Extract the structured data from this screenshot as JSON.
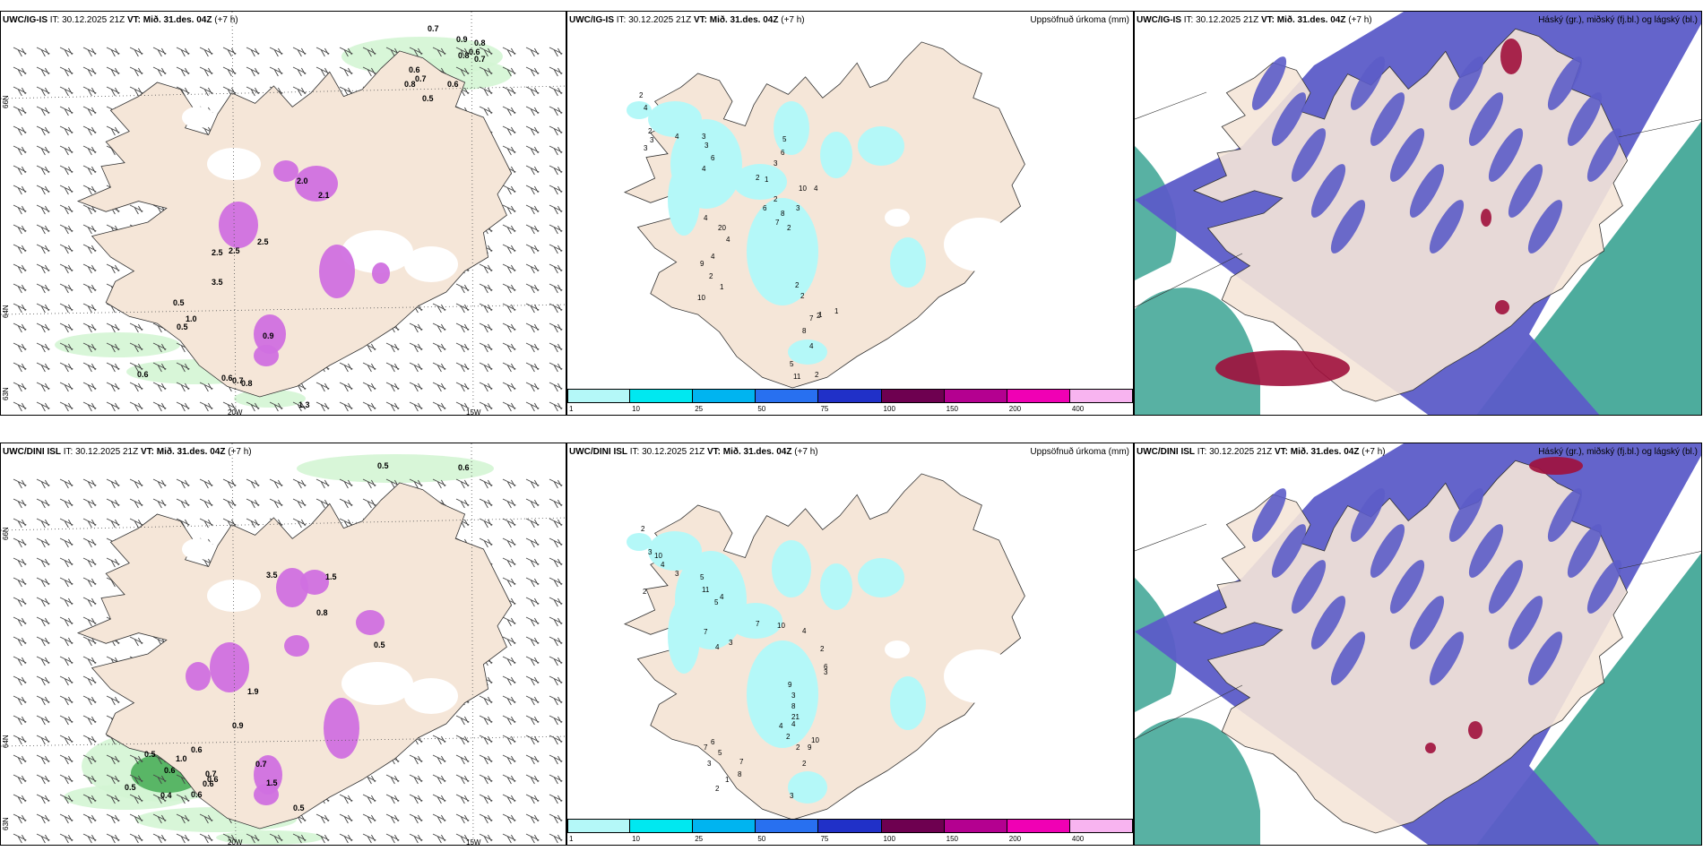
{
  "rows": [
    {
      "panels": [
        {
          "model": "UWC/IG-IS",
          "it_label": "IT: 30.12.2025 21Z",
          "vt_label": "VT: Mið. 31.des. 04Z",
          "lead": "(+7 h)",
          "title_right": "",
          "values": [
            "0.7",
            "0.9",
            "0.8",
            "0.6",
            "0.6",
            "0.8",
            "0.7",
            "0.6",
            "0.8",
            "0.7",
            "0.5",
            "2.0",
            "2.1",
            "3.5",
            "2.5",
            "0.9",
            "0.5",
            "2.5",
            "2.5",
            "0.5",
            "1.0",
            "0.6",
            "0.6",
            "0.7",
            "0.8",
            "1.3"
          ]
        },
        {
          "model": "UWC/IG-IS",
          "it_label": "IT: 30.12.2025 21Z",
          "vt_label": "VT: Mið. 31.des. 04Z",
          "lead": "(+7 h)",
          "title_right": "Uppsöfnuð úrkoma (mm)",
          "values": [
            "2",
            "4",
            "2",
            "3",
            "3",
            "4",
            "3",
            "3",
            "6",
            "4",
            "2",
            "1",
            "3",
            "6",
            "5",
            "10",
            "4",
            "3",
            "2",
            "2",
            "6",
            "7",
            "8",
            "4",
            "20",
            "4",
            "4",
            "9",
            "2",
            "1",
            "10",
            "2",
            "2",
            "2",
            "1",
            "1",
            "7",
            "8",
            "4",
            "5",
            "11",
            "2"
          ]
        },
        {
          "model": "UWC/IG-IS",
          "it_label": "IT: 30.12.2025 21Z",
          "vt_label": "VT: Mið. 31.des. 04Z",
          "lead": "(+7 h)",
          "title_right": "Háský (gr.), miðský (fj.bl.) og lágský (bl.)"
        }
      ]
    },
    {
      "panels": [
        {
          "model": "UWC/DINI ISL",
          "it_label": "IT: 30.12.2025 21Z",
          "vt_label": "VT: Mið. 31.des. 04Z",
          "lead": "(+7 h)",
          "title_right": "",
          "values": [
            "0.5",
            "0.6",
            "3.5",
            "1.5",
            "0.8",
            "0.5",
            "1.9",
            "0.9",
            "0.6",
            "0.5",
            "1.0",
            "0.6",
            "0.4",
            "0.7",
            "0.6",
            "0.6",
            "0.5",
            "0.6",
            "0.7",
            "1.5",
            "0.5"
          ]
        },
        {
          "model": "UWC/DINI ISL",
          "it_label": "IT: 30.12.2025 21Z",
          "vt_label": "VT: Mið. 31.des. 04Z",
          "lead": "(+7 h)",
          "title_right": "Uppsöfnuð úrkoma (mm)",
          "values": [
            "2",
            "3",
            "10",
            "4",
            "2",
            "3",
            "5",
            "11",
            "5",
            "4",
            "7",
            "4",
            "3",
            "7",
            "10",
            "4",
            "2",
            "6",
            "3",
            "9",
            "3",
            "8",
            "21",
            "4",
            "4",
            "10",
            "9",
            "2",
            "2",
            "3",
            "2",
            "6",
            "7",
            "5",
            "3",
            "7",
            "8",
            "1",
            "2"
          ]
        },
        {
          "model": "UWC/DINI ISL",
          "it_label": "IT: 30.12.2025 21Z",
          "vt_label": "VT: Mið. 31.des. 04Z",
          "lead": "(+7 h)",
          "title_right": "Háský (gr.), miðský (fj.bl.) og lágský (bl.)"
        }
      ]
    }
  ],
  "axis_labels": {
    "lat_66": "66N",
    "lat_64": "64N",
    "lat_bottom": "63N",
    "lon_20": "20W",
    "lon_15": "15W"
  },
  "colorbar": {
    "ticks": [
      "1",
      "10",
      "25",
      "50",
      "75",
      "100",
      "150",
      "200",
      "400"
    ],
    "colors": [
      "#b4f8f8",
      "#00e8f0",
      "#00b4f0",
      "#2870f0",
      "#2030c8",
      "#6e0050",
      "#b40090",
      "#f000b4",
      "#f8b4f0"
    ]
  },
  "colors": {
    "land": "#f5e6d8",
    "sea": "#ffffff",
    "rain": "#b4f8f8",
    "precip_light": "#d4f5d4",
    "precip_mid": "#3aa64a",
    "convective": "#d070e0",
    "high_cloud": "#5c5cc8",
    "mid_cloud": "#2e9e8c",
    "low_cloud": "#a0103c"
  }
}
